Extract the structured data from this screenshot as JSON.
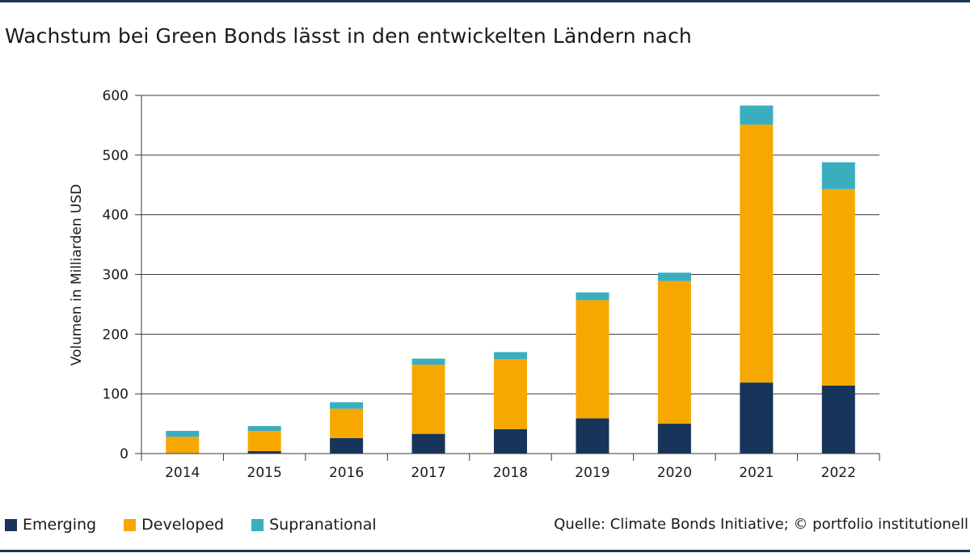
{
  "title": "Wachstum bei Green Bonds lässt in den entwickelten Ländern nach",
  "source": "Quelle: Climate Bonds Initiative; © portfolio institutionell",
  "colors": {
    "emerging": "#17355a",
    "developed": "#f7a800",
    "supranational": "#3aaebf",
    "rule": "#1b3556"
  },
  "legend": [
    {
      "label": "Emerging",
      "color": "#17355a"
    },
    {
      "label": "Developed",
      "color": "#f7a800"
    },
    {
      "label": "Supranational",
      "color": "#3aaebf"
    }
  ],
  "chart_data": {
    "type": "bar",
    "stacked": true,
    "categories": [
      "2014",
      "2015",
      "2016",
      "2017",
      "2018",
      "2019",
      "2020",
      "2021",
      "2022"
    ],
    "series": [
      {
        "name": "Emerging",
        "color": "#17355a",
        "values": [
          1,
          4,
          26,
          33,
          41,
          59,
          50,
          119,
          114
        ]
      },
      {
        "name": "Developed",
        "color": "#f7a800",
        "values": [
          27,
          34,
          49,
          116,
          117,
          198,
          239,
          432,
          329
        ]
      },
      {
        "name": "Supranational",
        "color": "#3aaebf",
        "values": [
          10,
          8,
          11,
          10,
          12,
          13,
          14,
          32,
          45
        ]
      }
    ],
    "ylabel": "Volumen in Milliarden USD",
    "xlabel": "",
    "ylim": [
      0,
      600
    ],
    "yticks": [
      0,
      100,
      200,
      300,
      400,
      500,
      600
    ],
    "grid": true,
    "legend_position": "bottom"
  }
}
